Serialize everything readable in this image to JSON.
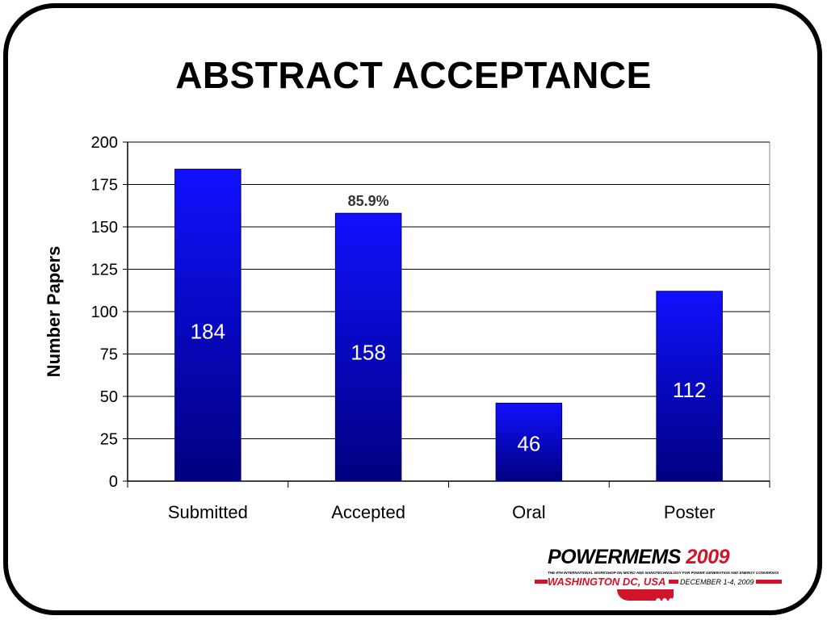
{
  "slide": {
    "title": "ABSTRACT ACCEPTANCE"
  },
  "chart_data": {
    "type": "bar",
    "categories": [
      "Submitted",
      "Accepted",
      "Oral",
      "Poster"
    ],
    "values": [
      184,
      158,
      46,
      112
    ],
    "data_labels": [
      "184",
      "158",
      "46",
      "112"
    ],
    "annotation": {
      "category": "Accepted",
      "text": "85.9%"
    },
    "title": "",
    "xlabel": "",
    "ylabel": "Number Papers",
    "ylim": [
      0,
      200
    ],
    "yticks": [
      0,
      25,
      50,
      75,
      100,
      125,
      150,
      175,
      200
    ],
    "grid": true,
    "legend": "none",
    "bar_color_top": "#1010ff",
    "bar_color_bottom": "#000080"
  },
  "logo": {
    "word_power": "POWER",
    "word_mems": "MEMS",
    "year": "2009",
    "tagline": "THE 9TH INTERNATIONAL WORKSHOP ON MICRO AND NANOTECHNOLOGY FOR POWER GENERATION AND ENERGY CONVERSION APPLICATIONS",
    "location": "WASHINGTON DC, USA",
    "dates": "DECEMBER 1-4, 2009",
    "accent_color": "#d2142b"
  }
}
